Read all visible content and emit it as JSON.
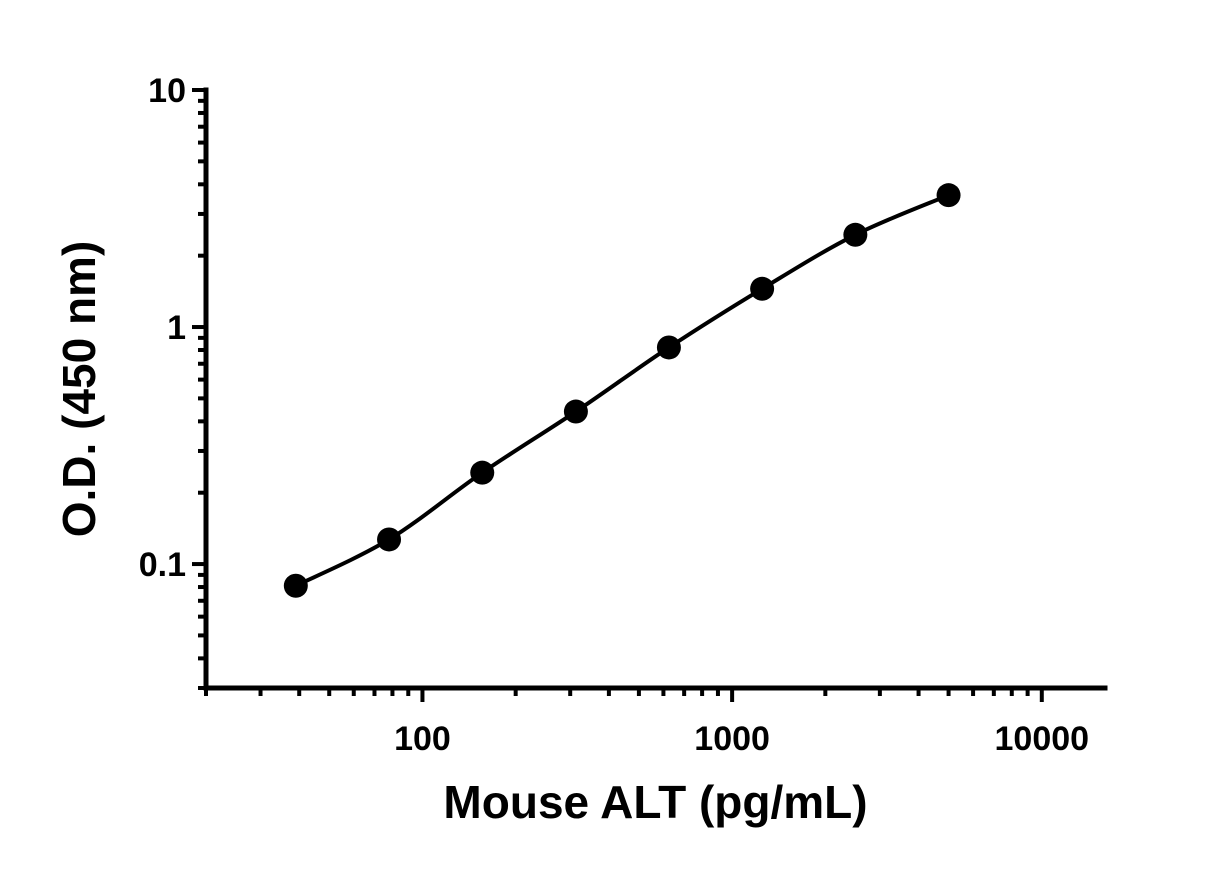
{
  "chart_data": {
    "type": "scatter",
    "title": "",
    "xlabel": "Mouse ALT (pg/mL)",
    "ylabel": "O.D. (450 nm)",
    "x_scale": "log",
    "y_scale": "log",
    "xlim": [
      20,
      16000
    ],
    "ylim": [
      0.03,
      10
    ],
    "x_ticks": [
      {
        "value": 100,
        "label": "100"
      },
      {
        "value": 1000,
        "label": "1000"
      },
      {
        "value": 10000,
        "label": "10000"
      }
    ],
    "y_ticks": [
      {
        "value": 0.1,
        "label": "0.1"
      },
      {
        "value": 1,
        "label": "1"
      },
      {
        "value": 10,
        "label": "10"
      }
    ],
    "grid": false,
    "legend": "none",
    "series": [
      {
        "x": [
          39,
          78,
          156,
          313,
          625,
          1250,
          2500,
          5000
        ],
        "y": [
          0.081,
          0.127,
          0.243,
          0.44,
          0.82,
          1.45,
          2.45,
          3.6
        ],
        "marker": "circle",
        "color": "#000000",
        "fit_curve": true
      }
    ]
  }
}
